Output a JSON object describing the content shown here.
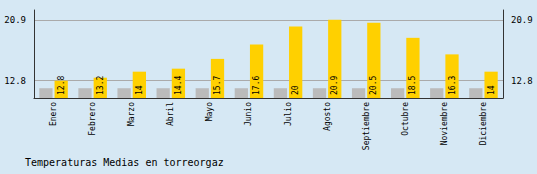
{
  "chart_data": {
    "type": "bar",
    "title": "Temperaturas Medias en torreorgaz",
    "categories": [
      "Enero",
      "Febrero",
      "Marzo",
      "Abril",
      "Mayo",
      "Junio",
      "Julio",
      "Agosto",
      "Septiembre",
      "Octubre",
      "Noviembre",
      "Diciembre"
    ],
    "series": [
      {
        "color": "#BBBBBB",
        "values": [
          11.8,
          11.8,
          11.8,
          11.8,
          11.8,
          11.8,
          11.8,
          11.8,
          11.8,
          11.8,
          11.8,
          11.8
        ]
      },
      {
        "color": "#FFD000",
        "values": [
          12.8,
          13.2,
          14.0,
          14.4,
          15.7,
          17.6,
          20.0,
          20.9,
          20.5,
          18.5,
          16.3,
          14.0
        ],
        "data_labels": true
      }
    ],
    "ylim": [
      10.5,
      22.2
    ],
    "yticks": [
      12.8,
      20.9
    ],
    "grid": true,
    "background_color": "#D6E8F4"
  }
}
